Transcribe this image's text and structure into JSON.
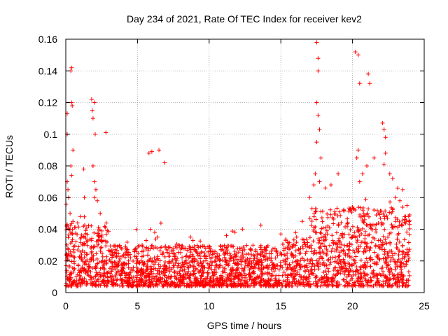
{
  "chart_data": {
    "type": "scatter",
    "title": "Day 234 of 2021, Rate Of TEC Index for receiver kev2",
    "xlabel": "GPS time / hours",
    "ylabel": "ROTI / TECUs",
    "xlim": [
      0,
      25
    ],
    "ylim": [
      0,
      0.16
    ],
    "xticks": [
      0,
      5,
      10,
      15,
      20,
      25
    ],
    "yticks": [
      0,
      0.02,
      0.04,
      0.06,
      0.08,
      0.1,
      0.12,
      0.14,
      0.16
    ],
    "xtick_labels": [
      "0",
      "5",
      "10",
      "15",
      "20",
      "25"
    ],
    "ytick_labels": [
      "0",
      "0.02",
      "0.04",
      "0.06",
      "0.08",
      "0.1",
      "0.12",
      "0.14",
      "0.16"
    ],
    "grid": true,
    "marker": "+",
    "color": "#ff0000",
    "data_time_range_hours": [
      0,
      24
    ],
    "x": [
      0.1,
      0.1,
      0.1,
      0.15,
      0.2,
      0.35,
      0.4,
      0.4,
      0.45,
      0.5,
      0.35,
      0.4,
      0.3,
      0.5,
      1.25,
      1.3,
      1.8,
      1.85,
      1.9,
      2.0,
      2.05,
      1.9,
      2.0,
      2.1,
      2.0,
      2.2,
      2.4,
      2.5,
      2.8,
      5.8,
      6.0,
      6.5,
      6.9,
      5.9,
      6.2,
      6.4,
      7.9,
      8.7,
      11.8,
      15.0,
      16.1,
      16.5,
      17.0,
      17.3,
      17.5,
      17.6,
      17.6,
      17.5,
      17.6,
      17.7,
      17.5,
      17.8,
      17.4,
      17.7,
      18.1,
      18.5,
      19.0,
      20.2,
      20.4,
      20.5,
      20.4,
      20.3,
      21.1,
      21.2,
      21.0,
      20.7,
      20.5,
      21.5,
      22.1,
      22.2,
      22.3,
      22.3,
      22.2,
      22.6,
      22.8,
      23.0,
      23.3,
      23.5,
      23.8
    ],
    "y": [
      0.113,
      0.1,
      0.07,
      0.065,
      0.06,
      0.14,
      0.142,
      0.12,
      0.118,
      0.09,
      0.08,
      0.074,
      0.05,
      0.045,
      0.078,
      0.06,
      0.122,
      0.115,
      0.11,
      0.12,
      0.1,
      0.08,
      0.07,
      0.065,
      0.06,
      0.058,
      0.05,
      0.035,
      0.101,
      0.088,
      0.089,
      0.09,
      0.082,
      0.04,
      0.038,
      0.035,
      0.03,
      0.035,
      0.038,
      0.037,
      0.035,
      0.045,
      0.06,
      0.068,
      0.158,
      0.148,
      0.14,
      0.12,
      0.112,
      0.103,
      0.095,
      0.085,
      0.075,
      0.07,
      0.066,
      0.068,
      0.075,
      0.152,
      0.15,
      0.132,
      0.09,
      0.085,
      0.138,
      0.132,
      0.08,
      0.075,
      0.07,
      0.085,
      0.107,
      0.103,
      0.098,
      0.088,
      0.081,
      0.075,
      0.072,
      0.06,
      0.058,
      0.065,
      0.055
    ]
  }
}
